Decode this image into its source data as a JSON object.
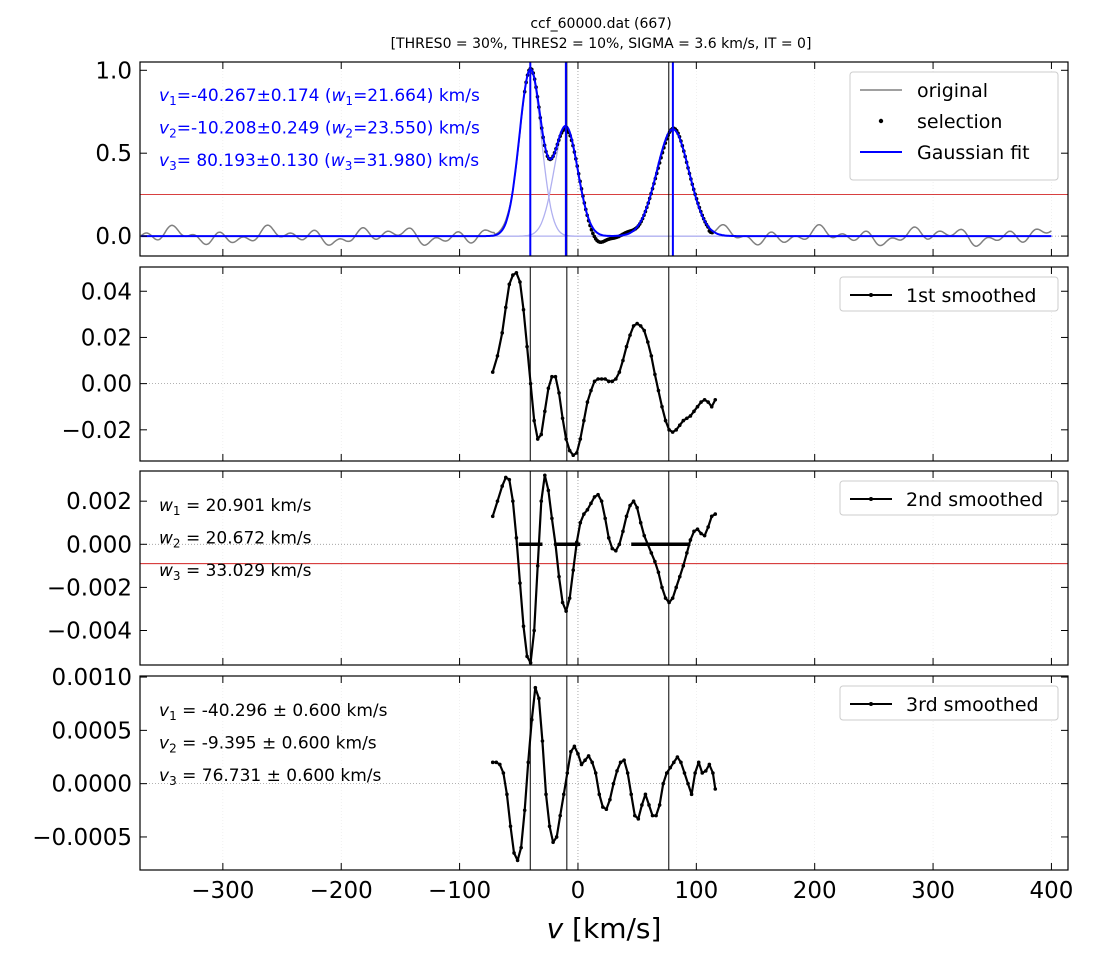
{
  "title_line1": "ccf_60000.dat (667)",
  "title_line2": "[THRES0 = 30%, THRES2 = 10%, SIGMA =  3.6 km/s, IT = 0]",
  "xlabel_var": "v",
  "xlabel_unit": " [km/s]",
  "colors": {
    "original": "#808080",
    "selection": "#000000",
    "fit": "#0000ff",
    "threshold": "#cc0000",
    "marker": "#000000"
  },
  "x_ticks": [
    "−300",
    "−200",
    "−100",
    "0",
    "100",
    "200",
    "300",
    "400"
  ],
  "chart_data": [
    {
      "type": "line",
      "panel": "ccf",
      "xlim": [
        -370,
        414
      ],
      "ylim": [
        -0.12,
        1.05
      ],
      "y_ticks": [
        "0.0",
        "0.5",
        "1.0"
      ],
      "y_tick_values": [
        0.0,
        0.5,
        1.0
      ],
      "legend": [
        "original",
        "selection",
        "Gaussian fit"
      ],
      "legend_position": "top-right",
      "threshold_y": 0.25,
      "components": [
        {
          "mu": -40.267,
          "amp": 1.0,
          "sigma": 9.2
        },
        {
          "mu": -10.208,
          "amp": 0.66,
          "sigma": 10.0
        },
        {
          "mu": 80.193,
          "amp": 0.645,
          "sigma": 13.6
        }
      ],
      "fit_centers": [
        -40.267,
        -10.208,
        80.193
      ],
      "marker_lines": [
        -40.296,
        -9.395,
        76.731
      ],
      "selection_range": [
        -45,
        114
      ],
      "annotations": [
        {
          "sym": "v",
          "sub": "1",
          "text": "=-40.267±0.174 (",
          "wsym": "w",
          "wsub": "1",
          "wtext": "=21.664) km/s"
        },
        {
          "sym": "v",
          "sub": "2",
          "text": "=-10.208±0.249 (",
          "wsym": "w",
          "wsub": "2",
          "wtext": "=23.550) km/s"
        },
        {
          "sym": "v",
          "sub": "3",
          "text": "= 80.193±0.130 (",
          "wsym": "w",
          "wsub": "3",
          "wtext": "=31.980) km/s"
        }
      ]
    },
    {
      "type": "line",
      "panel": "first-derivative",
      "xlim": [
        -370,
        414
      ],
      "ylim": [
        -0.0335,
        0.0505
      ],
      "y_ticks": [
        "0.04",
        "0.02",
        "0.00",
        "−0.02"
      ],
      "y_tick_values": [
        0.04,
        0.02,
        0.0,
        -0.02
      ],
      "legend": [
        "1st smoothed"
      ],
      "legend_position": "top-right",
      "x": [
        -72,
        -68,
        -64,
        -61,
        -58,
        -55,
        -52,
        -49,
        -46,
        -43,
        -40,
        -37,
        -34,
        -31,
        -28,
        -25,
        -22,
        -19,
        -16,
        -13,
        -10,
        -7,
        -4,
        -1,
        2,
        5,
        8,
        11,
        14,
        17,
        20,
        23,
        26,
        29,
        32,
        35,
        38,
        41,
        44,
        47,
        50,
        53,
        56,
        59,
        62,
        65,
        68,
        71,
        74,
        77,
        80,
        83,
        86,
        89,
        92,
        95,
        98,
        101,
        104,
        107,
        110,
        113,
        116
      ],
      "y": [
        0.005,
        0.012,
        0.022,
        0.033,
        0.043,
        0.047,
        0.048,
        0.044,
        0.032,
        0.016,
        0.0,
        -0.016,
        -0.024,
        -0.022,
        -0.012,
        -0.002,
        0.003,
        0.003,
        -0.004,
        -0.015,
        -0.024,
        -0.029,
        -0.031,
        -0.03,
        -0.024,
        -0.016,
        -0.008,
        -0.003,
        0.001,
        0.002,
        0.002,
        0.002,
        0.001,
        0.001,
        0.002,
        0.005,
        0.01,
        0.016,
        0.021,
        0.025,
        0.026,
        0.025,
        0.023,
        0.018,
        0.012,
        0.004,
        -0.003,
        -0.01,
        -0.016,
        -0.02,
        -0.021,
        -0.02,
        -0.018,
        -0.016,
        -0.015,
        -0.014,
        -0.012,
        -0.01,
        -0.008,
        -0.007,
        -0.008,
        -0.01,
        -0.007
      ]
    },
    {
      "type": "line",
      "panel": "second-derivative",
      "xlim": [
        -370,
        414
      ],
      "ylim": [
        -0.0056,
        0.0034
      ],
      "y_ticks": [
        "0.002",
        "0.000",
        "−0.002",
        "−0.004"
      ],
      "y_tick_values": [
        0.002,
        0.0,
        -0.002,
        -0.004
      ],
      "legend": [
        "2nd smoothed"
      ],
      "legend_position": "top-right",
      "threshold_y": -0.0009,
      "plateaus": [
        [
          -50,
          -30
        ],
        [
          -20,
          2
        ],
        [
          45,
          95
        ]
      ],
      "x": [
        -72,
        -68,
        -64,
        -61,
        -58,
        -55,
        -52,
        -49,
        -46,
        -43,
        -40,
        -37,
        -34,
        -31,
        -28,
        -25,
        -22,
        -19,
        -16,
        -13,
        -10,
        -7,
        -4,
        -1,
        2,
        5,
        8,
        11,
        14,
        17,
        20,
        23,
        26,
        29,
        32,
        35,
        38,
        41,
        44,
        47,
        50,
        53,
        56,
        59,
        62,
        65,
        68,
        71,
        74,
        77,
        80,
        83,
        86,
        89,
        92,
        95,
        98,
        101,
        104,
        107,
        110,
        113,
        116
      ],
      "y": [
        0.0013,
        0.002,
        0.0027,
        0.0031,
        0.003,
        0.002,
        0.0003,
        -0.0018,
        -0.0038,
        -0.0052,
        -0.0055,
        -0.004,
        -0.001,
        0.002,
        0.0032,
        0.0025,
        0.0012,
        0.0,
        -0.0015,
        -0.0027,
        -0.0031,
        -0.0025,
        -0.0012,
        0.0001,
        0.001,
        0.0014,
        0.0016,
        0.0019,
        0.0022,
        0.0023,
        0.002,
        0.0012,
        0.0003,
        -0.0002,
        -0.0003,
        0.0,
        0.0006,
        0.0013,
        0.0018,
        0.002,
        0.0017,
        0.001,
        0.0004,
        0.0,
        -0.0004,
        -0.0008,
        -0.0013,
        -0.002,
        -0.0025,
        -0.0027,
        -0.0025,
        -0.002,
        -0.0015,
        -0.001,
        -0.0004,
        0.0002,
        0.0006,
        0.0007,
        0.0005,
        0.0004,
        0.0008,
        0.0013,
        0.0014
      ],
      "annotations": [
        {
          "sym": "w",
          "sub": "1",
          "text": " =  20.901 km/s"
        },
        {
          "sym": "w",
          "sub": "2",
          "text": " =  20.672 km/s"
        },
        {
          "sym": "w",
          "sub": "3",
          "text": " =  33.029 km/s"
        }
      ]
    },
    {
      "type": "line",
      "panel": "third-derivative",
      "xlim": [
        -370,
        414
      ],
      "ylim": [
        -0.00081,
        0.00101
      ],
      "y_ticks": [
        "0.0010",
        "0.0005",
        "0.0000",
        "−0.0005"
      ],
      "y_tick_values": [
        0.001,
        0.0005,
        0.0,
        -0.0005
      ],
      "legend": [
        "3rd smoothed"
      ],
      "legend_position": "top-right",
      "x": [
        -72,
        -69,
        -66,
        -63,
        -60,
        -57,
        -54,
        -51,
        -48,
        -45,
        -42,
        -39,
        -36,
        -33,
        -30,
        -27,
        -24,
        -21,
        -18,
        -15,
        -12,
        -9,
        -6,
        -3,
        0,
        3,
        6,
        9,
        12,
        15,
        18,
        21,
        24,
        27,
        30,
        33,
        36,
        39,
        42,
        45,
        48,
        51,
        54,
        57,
        60,
        63,
        66,
        69,
        72,
        75,
        78,
        81,
        84,
        87,
        90,
        93,
        96,
        99,
        102,
        105,
        108,
        111,
        114,
        116
      ],
      "y": [
        0.0002,
        0.0002,
        0.00018,
        0.0001,
        -0.0001,
        -0.0004,
        -0.00065,
        -0.00072,
        -0.0006,
        -0.00025,
        0.0002,
        0.0006,
        0.0009,
        0.0008,
        0.0004,
        -0.0001,
        -0.0004,
        -0.00055,
        -0.0005,
        -0.0003,
        -0.0001,
        0.0001,
        0.0003,
        0.00035,
        0.00028,
        0.00018,
        0.00022,
        0.00026,
        0.0002,
        0.0001,
        -0.0001,
        -0.00022,
        -0.00024,
        -0.00015,
        0.0,
        0.00012,
        0.0002,
        0.00022,
        0.0001,
        -0.0001,
        -0.0003,
        -0.00033,
        -0.0002,
        -0.0001,
        -0.0002,
        -0.0003,
        -0.0003,
        -0.0002,
        0.0,
        0.0001,
        0.00015,
        0.0002,
        0.00025,
        0.0002,
        0.0001,
        0.0,
        -0.0001,
        0.0001,
        0.0002,
        0.0001,
        0.00012,
        0.00018,
        0.0001,
        -5e-05
      ],
      "annotations": [
        {
          "sym": "v",
          "sub": "1",
          "text": " = -40.296 ± 0.600 km/s"
        },
        {
          "sym": "v",
          "sub": "2",
          "text": " =  -9.395 ± 0.600 km/s"
        },
        {
          "sym": "v",
          "sub": "3",
          "text": " =  76.731 ± 0.600 km/s"
        }
      ]
    }
  ]
}
